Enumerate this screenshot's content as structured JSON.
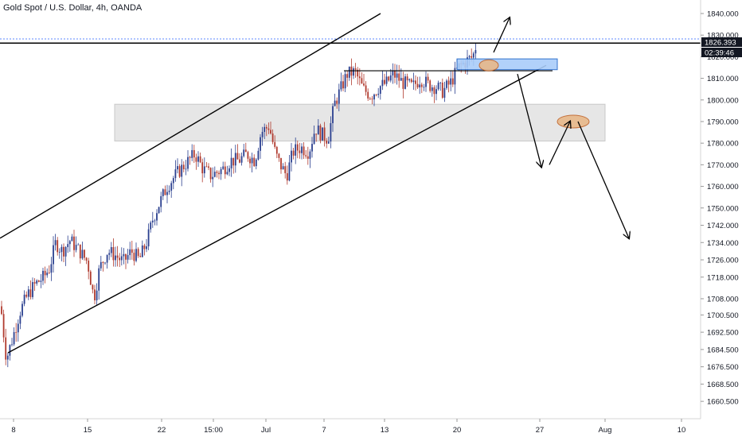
{
  "title": "Gold Spot / U.S. Dollar, 4h, OANDA",
  "price_label": "1826.393",
  "countdown_label": "02:39:46",
  "colors": {
    "up": "#2a3f8f",
    "down": "#b03a2e",
    "channel": "#000000",
    "zone_fill": "#e6e6e6",
    "zone_stroke": "#c8c8c8",
    "box_fill": "#a9cdfa",
    "box_stroke": "#1e64c8",
    "ellipse_fill": "#e8b88a",
    "ellipse_stroke": "#c0642a",
    "price_line": "#2962ff",
    "price_tag_bg": "#131722"
  },
  "chart_data": {
    "type": "candlestick",
    "title": "Gold Spot / U.S. Dollar, 4h, OANDA",
    "ylim": [
      1654,
      1848
    ],
    "y_ticks": [
      "1840.000",
      "1830.000",
      "1820.000",
      "1810.000",
      "1800.000",
      "1790.000",
      "1780.000",
      "1770.000",
      "1760.000",
      "1750.000",
      "1742.000",
      "1734.000",
      "1726.000",
      "1718.000",
      "1708.000",
      "1700.500",
      "1692.500",
      "1684.500",
      "1676.500",
      "1668.500",
      "1660.500"
    ],
    "x_ticks": [
      "8",
      "15",
      "22",
      "15:00",
      "Jul",
      "7",
      "13",
      "20",
      "27",
      "Aug",
      "10"
    ],
    "last_price": 1826.393,
    "candle_path_keypoints": [
      [
        0,
        1708
      ],
      [
        8,
        1680
      ],
      [
        16,
        1690
      ],
      [
        25,
        1702
      ],
      [
        35,
        1710
      ],
      [
        45,
        1715
      ],
      [
        55,
        1718
      ],
      [
        62,
        1722
      ],
      [
        70,
        1734
      ],
      [
        78,
        1730
      ],
      [
        88,
        1735
      ],
      [
        100,
        1730
      ],
      [
        110,
        1725
      ],
      [
        118,
        1708
      ],
      [
        125,
        1722
      ],
      [
        135,
        1730
      ],
      [
        145,
        1728
      ],
      [
        155,
        1725
      ],
      [
        165,
        1730
      ],
      [
        175,
        1726
      ],
      [
        185,
        1735
      ],
      [
        192,
        1745
      ],
      [
        200,
        1752
      ],
      [
        210,
        1760
      ],
      [
        220,
        1765
      ],
      [
        232,
        1770
      ],
      [
        245,
        1775
      ],
      [
        255,
        1768
      ],
      [
        265,
        1765
      ],
      [
        280,
        1768
      ],
      [
        290,
        1772
      ],
      [
        300,
        1772
      ],
      [
        310,
        1775
      ],
      [
        320,
        1772
      ],
      [
        328,
        1785
      ],
      [
        338,
        1788
      ],
      [
        346,
        1775
      ],
      [
        352,
        1770
      ],
      [
        360,
        1765
      ],
      [
        368,
        1776
      ],
      [
        378,
        1778
      ],
      [
        388,
        1776
      ],
      [
        396,
        1787
      ],
      [
        404,
        1784
      ],
      [
        412,
        1782
      ],
      [
        420,
        1798
      ],
      [
        428,
        1805
      ],
      [
        436,
        1812
      ],
      [
        446,
        1813
      ],
      [
        456,
        1805
      ],
      [
        466,
        1802
      ],
      [
        476,
        1806
      ],
      [
        486,
        1808
      ],
      [
        494,
        1812
      ],
      [
        506,
        1808
      ],
      [
        518,
        1806
      ],
      [
        528,
        1810
      ],
      [
        538,
        1807
      ],
      [
        548,
        1806
      ],
      [
        556,
        1804
      ],
      [
        566,
        1808
      ],
      [
        576,
        1815
      ],
      [
        586,
        1818
      ],
      [
        594,
        1820
      ],
      [
        600,
        1828
      ]
    ],
    "annotations": {
      "channel_upper": [
        [
          0,
          1736
        ],
        [
          478,
          1840
        ]
      ],
      "channel_lower": [
        [
          10,
          1683
        ],
        [
          686,
          1816
        ]
      ],
      "horizontal_line": [
        [
          0,
          1826.3
        ],
        [
          880,
          1826.3
        ]
      ],
      "resistance_segment": [
        [
          432,
          1813.5
        ],
        [
          694,
          1813.5
        ]
      ],
      "zone": {
        "x0": 144,
        "x1": 760,
        "y_top": 1798,
        "y_bottom": 1781
      },
      "box": {
        "x0": 574,
        "x1": 700,
        "y_top": 1819,
        "y_bottom": 1814
      },
      "ellipse_1": {
        "cx": 614,
        "y": 1816
      },
      "ellipse_2": {
        "cx": 720,
        "y": 1790
      },
      "arrow_up_to": [
        640,
        1838
      ],
      "arrow_down_1": [
        [
          650,
          1812
        ],
        [
          680,
          1769
        ]
      ],
      "arrow_bounce_up": [
        [
          690,
          1770
        ],
        [
          716,
          1790
        ]
      ],
      "arrow_down_2": [
        [
          726,
          1790
        ],
        [
          790,
          1736
        ]
      ],
      "arrow_small": [
        [
          616,
          1816
        ],
        [
          628,
          1820
        ]
      ]
    }
  }
}
